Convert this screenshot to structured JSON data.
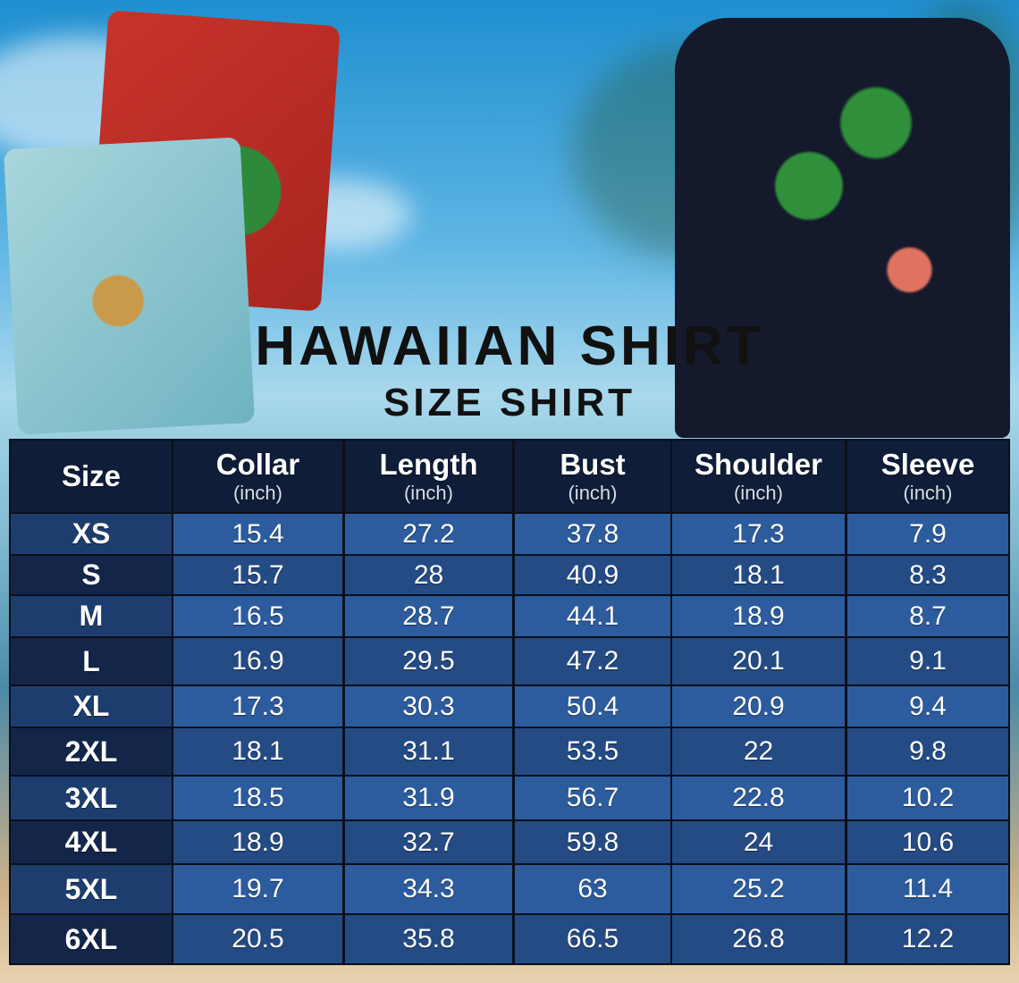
{
  "title": "HAWAIIAN SHIRT",
  "subtitle": "SIZE SHIRT",
  "colors": {
    "header_bg": "#0f1d38",
    "row_light": "#2c5c9e",
    "row_dark": "#244b84",
    "size_col_light": "#1d3d6e",
    "size_col_dark": "#13264a"
  },
  "table": {
    "columns": [
      {
        "label": "Size",
        "unit": ""
      },
      {
        "label": "Collar",
        "unit": "(inch)"
      },
      {
        "label": "Length",
        "unit": "(inch)"
      },
      {
        "label": "Bust",
        "unit": "(inch)"
      },
      {
        "label": "Shoulder",
        "unit": "(inch)"
      },
      {
        "label": "Sleeve",
        "unit": "(inch)"
      }
    ],
    "rows": [
      [
        "XS",
        "15.4",
        "27.2",
        "37.8",
        "17.3",
        "7.9"
      ],
      [
        "S",
        "15.7",
        "28",
        "40.9",
        "18.1",
        "8.3"
      ],
      [
        "M",
        "16.5",
        "28.7",
        "44.1",
        "18.9",
        "8.7"
      ],
      [
        "L",
        "16.9",
        "29.5",
        "47.2",
        "20.1",
        "9.1"
      ],
      [
        "XL",
        "17.3",
        "30.3",
        "50.4",
        "20.9",
        "9.4"
      ],
      [
        "2XL",
        "18.1",
        "31.1",
        "53.5",
        "22",
        "9.8"
      ],
      [
        "3XL",
        "18.5",
        "31.9",
        "56.7",
        "22.8",
        "10.2"
      ],
      [
        "4XL",
        "18.9",
        "32.7",
        "59.8",
        "24",
        "10.6"
      ],
      [
        "5XL",
        "19.7",
        "34.3",
        "63",
        "25.2",
        "11.4"
      ],
      [
        "6XL",
        "20.5",
        "35.8",
        "66.5",
        "26.8",
        "12.2"
      ]
    ]
  }
}
